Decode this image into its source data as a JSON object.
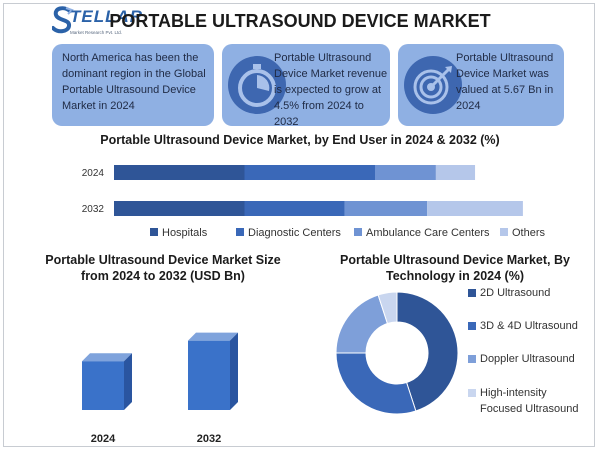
{
  "logo": {
    "word": "TELLAR",
    "sub": "Market Research Pvt. Ltd."
  },
  "title": "PORTABLE ULTRASOUND DEVICE MARKET",
  "cards": [
    {
      "text": "North America has been the dominant region in the Global Portable Ultrasound Device Market in 2024",
      "icon": ""
    },
    {
      "text": "Portable Ultrasound Device Market revenue is expected to grow at 4.5% from 2024 to 2032",
      "icon": "stopwatch-icon"
    },
    {
      "text": "Portable Ultrasound Device Market was valued at 5.67 Bn in 2024",
      "icon": "target-icon"
    }
  ],
  "colors": {
    "hospitals": "#2f5597",
    "diagnostic": "#3a68b8",
    "ambulance": "#6f93d3",
    "others": "#b5c7ea",
    "bar3d": "#3a72c9"
  },
  "chart_data": [
    {
      "type": "bar",
      "orientation": "horizontal-stacked",
      "title": "Portable Ultrasound Device Market, by End User in 2024 & 2032 (%)",
      "categories": [
        "2024",
        "2032"
      ],
      "series": [
        {
          "name": "Hospitals",
          "values": [
            30,
            30
          ]
        },
        {
          "name": "Diagnostic Centers",
          "values": [
            30,
            23
          ]
        },
        {
          "name": "Ambulance Care Centers",
          "values": [
            14,
            19
          ]
        },
        {
          "name": "Others",
          "values": [
            9,
            22
          ]
        }
      ],
      "legend": "bottom"
    },
    {
      "type": "bar",
      "title": "Portable Ultrasound Device Market Size from 2024 to 2032 (USD Bn)",
      "categories": [
        "2024",
        "2032"
      ],
      "values": [
        5.67,
        8.06
      ]
    },
    {
      "type": "pie",
      "title": "Portable Ultrasound Device Market, By Technology in 2024 (%)",
      "categories": [
        "2D Ultrasound",
        "3D & 4D Ultrasound",
        "Doppler Ultrasound",
        "High-intensity Focused Ultrasound"
      ],
      "values": [
        45,
        30,
        20,
        5
      ],
      "legend": "right"
    }
  ]
}
